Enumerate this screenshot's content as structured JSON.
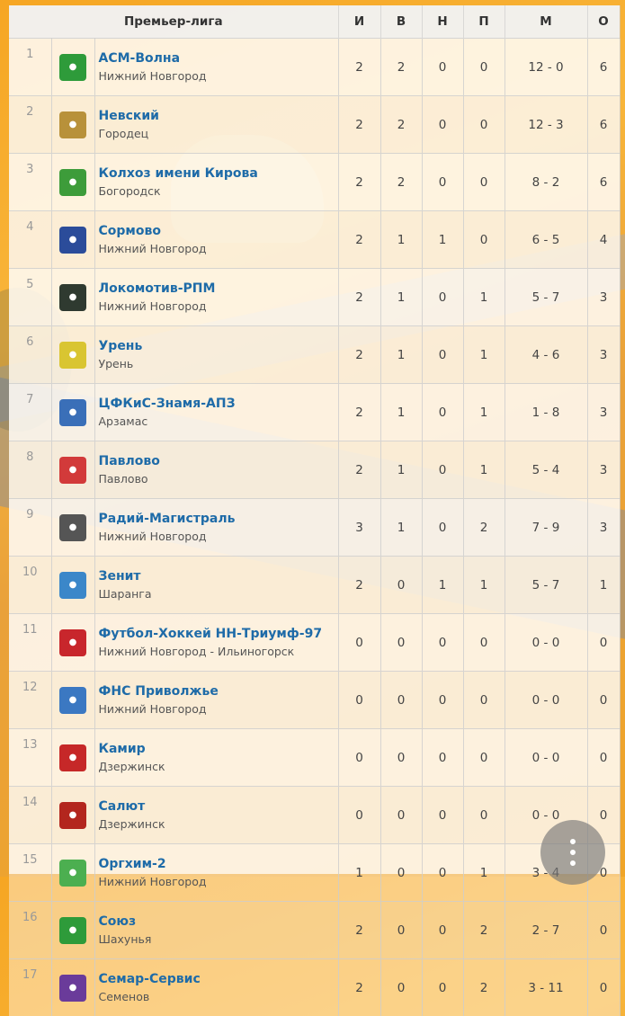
{
  "header": {
    "league": "Премьер-лига",
    "col_played": "И",
    "col_won": "В",
    "col_draw": "Н",
    "col_lost": "П",
    "col_goals": "М",
    "col_points": "О"
  },
  "teams": [
    {
      "pos": "1",
      "name": "АСМ-Волна",
      "city": "Нижний Новгород",
      "played": "2",
      "won": "2",
      "draw": "0",
      "lost": "0",
      "goals": "12 - 0",
      "points": "6",
      "logo_color": "#2e9b3a",
      "logo_icon": "ball-icon"
    },
    {
      "pos": "2",
      "name": "Невский",
      "city": "Городец",
      "played": "2",
      "won": "2",
      "draw": "0",
      "lost": "0",
      "goals": "12 - 3",
      "points": "6",
      "logo_color": "#b8913a",
      "logo_icon": "shield-icon"
    },
    {
      "pos": "3",
      "name": "Колхоз имени Кирова",
      "city": "Богородск",
      "played": "2",
      "won": "2",
      "draw": "0",
      "lost": "0",
      "goals": "8 - 2",
      "points": "6",
      "logo_color": "#3d9c3a",
      "logo_icon": "shield-icon"
    },
    {
      "pos": "4",
      "name": "Сормово",
      "city": "Нижний Новгород",
      "played": "2",
      "won": "1",
      "draw": "1",
      "lost": "0",
      "goals": "6 - 5",
      "points": "4",
      "logo_color": "#2b4c9a",
      "logo_icon": "ball-icon"
    },
    {
      "pos": "5",
      "name": "Локомотив-РПМ",
      "city": "Нижний Новгород",
      "played": "2",
      "won": "1",
      "draw": "0",
      "lost": "1",
      "goals": "5 - 7",
      "points": "3",
      "logo_color": "#2f3a30",
      "logo_icon": "ball-icon"
    },
    {
      "pos": "6",
      "name": "Урень",
      "city": "Урень",
      "played": "2",
      "won": "1",
      "draw": "0",
      "lost": "1",
      "goals": "4 - 6",
      "points": "3",
      "logo_color": "#d9c531",
      "logo_icon": "shield-icon"
    },
    {
      "pos": "7",
      "name": "ЦФКиС-Знамя-АПЗ",
      "city": "Арзамас",
      "played": "2",
      "won": "1",
      "draw": "0",
      "lost": "1",
      "goals": "1 - 8",
      "points": "3",
      "logo_color": "#3a6fb8",
      "logo_icon": "ball-icon"
    },
    {
      "pos": "8",
      "name": "Павлово",
      "city": "Павлово",
      "played": "2",
      "won": "1",
      "draw": "0",
      "lost": "1",
      "goals": "5 - 4",
      "points": "3",
      "logo_color": "#d23a3a",
      "logo_icon": "shield-icon"
    },
    {
      "pos": "9",
      "name": "Радий-Магистраль",
      "city": "Нижний Новгород",
      "played": "3",
      "won": "1",
      "draw": "0",
      "lost": "2",
      "goals": "7 - 9",
      "points": "3",
      "logo_color": "#555555",
      "logo_icon": "text-logo-icon"
    },
    {
      "pos": "10",
      "name": "Зенит",
      "city": "Шаранга",
      "played": "2",
      "won": "0",
      "draw": "1",
      "lost": "1",
      "goals": "5 - 7",
      "points": "1",
      "logo_color": "#3b87c9",
      "logo_icon": "text-logo-icon"
    },
    {
      "pos": "11",
      "name": "Футбол-Хоккей НН-Триумф-97",
      "city": "Нижний Новгород - Ильиногорск",
      "played": "0",
      "won": "0",
      "draw": "0",
      "lost": "0",
      "goals": "0 - 0",
      "points": "0",
      "logo_color": "#c8262c",
      "logo_icon": "shield-icon"
    },
    {
      "pos": "12",
      "name": "ФНС Приволжье",
      "city": "Нижний Новгород",
      "played": "0",
      "won": "0",
      "draw": "0",
      "lost": "0",
      "goals": "0 - 0",
      "points": "0",
      "logo_color": "#3b78c2",
      "logo_icon": "ball-icon"
    },
    {
      "pos": "13",
      "name": "Камир",
      "city": "Дзержинск",
      "played": "0",
      "won": "0",
      "draw": "0",
      "lost": "0",
      "goals": "0 - 0",
      "points": "0",
      "logo_color": "#c62828",
      "logo_icon": "text-logo-icon"
    },
    {
      "pos": "14",
      "name": "Салют",
      "city": "Дзержинск",
      "played": "0",
      "won": "0",
      "draw": "0",
      "lost": "0",
      "goals": "0 - 0",
      "points": "0",
      "logo_color": "#b3261e",
      "logo_icon": "shield-icon"
    },
    {
      "pos": "15",
      "name": "Оргхим-2",
      "city": "Нижний Новгород",
      "played": "1",
      "won": "0",
      "draw": "0",
      "lost": "1",
      "goals": "3 - 4",
      "points": "0",
      "logo_color": "#4caf50",
      "logo_icon": "shield-icon"
    },
    {
      "pos": "16",
      "name": "Союз",
      "city": "Шахунья",
      "played": "2",
      "won": "0",
      "draw": "0",
      "lost": "2",
      "goals": "2 - 7",
      "points": "0",
      "logo_color": "#2e9b3a",
      "logo_icon": "ball-icon"
    },
    {
      "pos": "17",
      "name": "Семар-Сервис",
      "city": "Семенов",
      "played": "2",
      "won": "0",
      "draw": "0",
      "lost": "2",
      "goals": "3 - 11",
      "points": "0",
      "logo_color": "#6a3b9a",
      "logo_icon": "ball-icon"
    }
  ]
}
